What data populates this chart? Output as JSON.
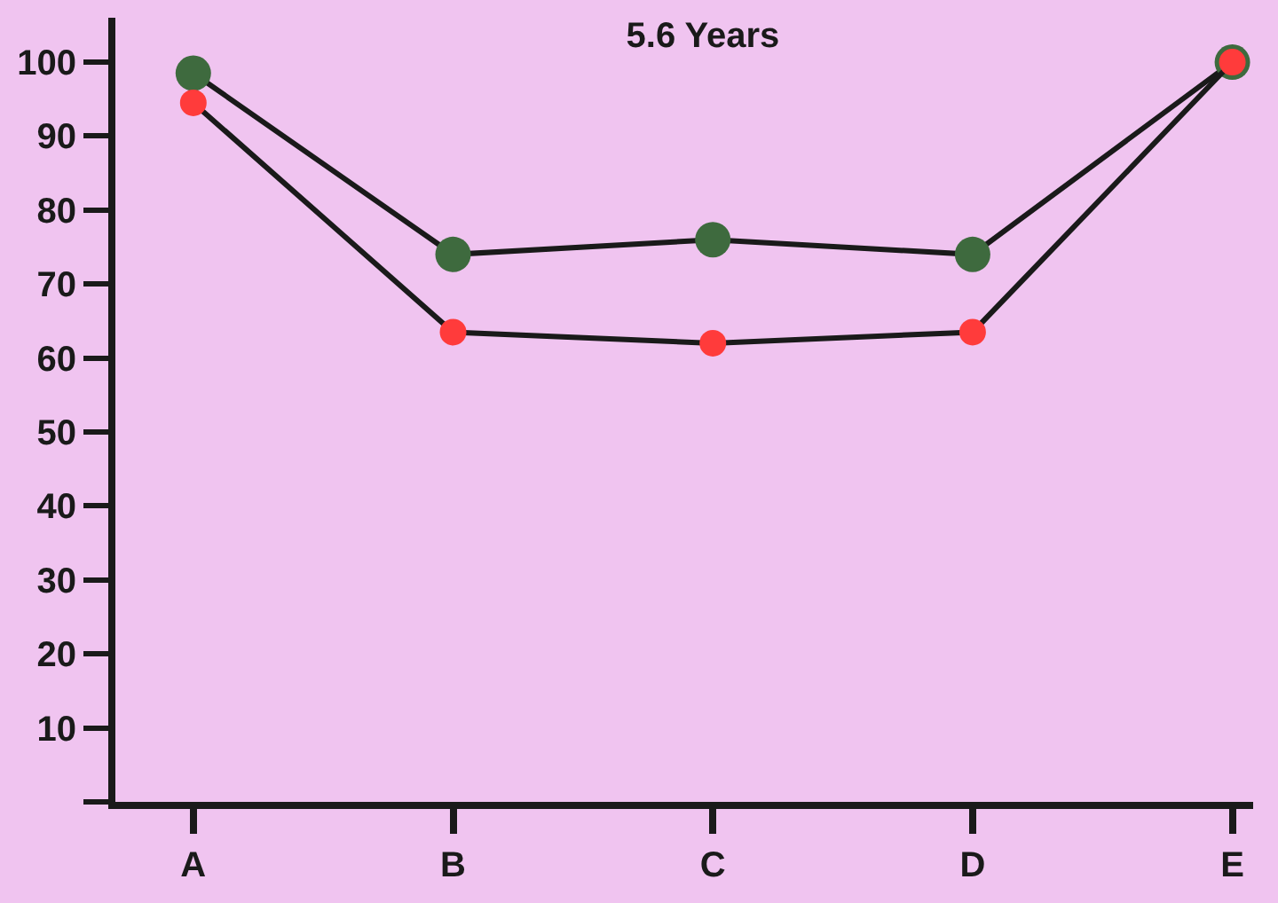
{
  "chart_data": {
    "type": "line",
    "title": "5.6 Years",
    "categories": [
      "A",
      "B",
      "C",
      "D",
      "E"
    ],
    "series": [
      {
        "color": "#3e6a3e",
        "values": [
          98.5,
          74,
          76,
          74,
          100
        ]
      },
      {
        "color": "#ff3b3b",
        "values": [
          94.5,
          63.5,
          62,
          63.5,
          100
        ]
      }
    ],
    "ylim": [
      0,
      106
    ],
    "yticks": [
      {
        "value": 0,
        "label": null
      },
      10,
      20,
      30,
      40,
      50,
      60,
      70,
      80,
      90,
      100
    ],
    "grid": false,
    "marker": "circle",
    "line_style": "solid"
  }
}
